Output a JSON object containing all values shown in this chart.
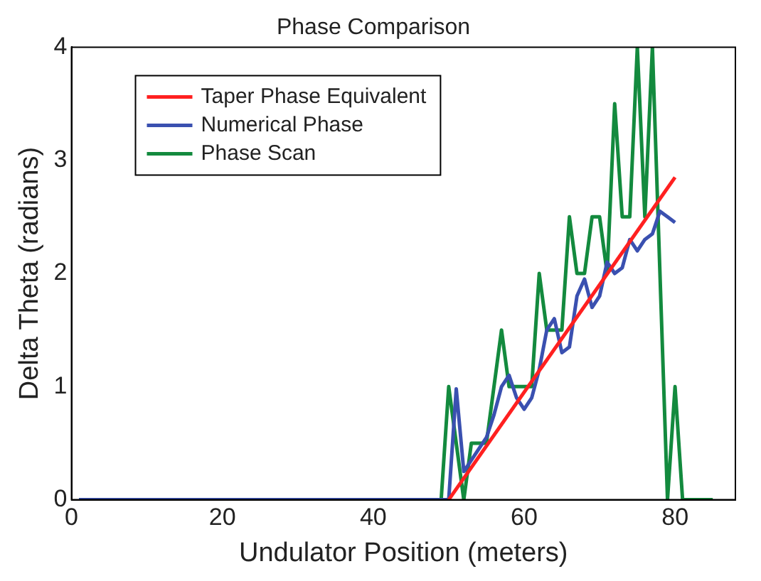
{
  "chart_data": {
    "type": "line",
    "title": "Phase Comparison",
    "xlabel": "Undulator Position (meters)",
    "ylabel": "Delta Theta (radians)",
    "xlim": [
      0,
      88
    ],
    "xticks": [
      0,
      20,
      40,
      60,
      80
    ],
    "ylim": [
      0,
      4
    ],
    "yticks": [
      0,
      1,
      2,
      3,
      4
    ],
    "grid": false,
    "legend": "top left",
    "marker": "none",
    "line_style": "solid",
    "series": [
      {
        "name": "Taper Phase Equivalent",
        "color": "#ff2020",
        "x": [
          50,
          80
        ],
        "values": [
          0,
          2.85
        ]
      },
      {
        "name": "Numerical Phase",
        "color": "#3a50b0",
        "x": [
          1,
          50,
          51,
          52,
          53,
          54,
          55,
          56,
          57,
          58,
          59,
          60,
          61,
          62,
          63,
          64,
          65,
          66,
          67,
          68,
          69,
          70,
          71,
          72,
          73,
          74,
          75,
          76,
          77,
          78,
          79,
          80
        ],
        "values": [
          0,
          0,
          0.98,
          0.25,
          0.35,
          0.45,
          0.55,
          0.75,
          1.0,
          1.1,
          0.9,
          0.8,
          0.9,
          1.15,
          1.5,
          1.6,
          1.3,
          1.35,
          1.8,
          1.95,
          1.7,
          1.8,
          2.1,
          2.0,
          2.05,
          2.3,
          2.2,
          2.3,
          2.35,
          2.55,
          2.5,
          2.45
        ]
      },
      {
        "name": "Phase Scan",
        "color": "#138a3e",
        "x": [
          1,
          49,
          50,
          52,
          53,
          55,
          57,
          58,
          61,
          62,
          63,
          65,
          66,
          67,
          68,
          69,
          70,
          71,
          72,
          73,
          74,
          75,
          76,
          77,
          79,
          80,
          81,
          85
        ],
        "values": [
          0,
          0,
          1,
          0,
          0.5,
          0.5,
          1.5,
          1,
          1,
          2,
          1.5,
          1.5,
          2.5,
          2,
          2,
          2.5,
          2.5,
          2,
          3.5,
          2.5,
          2.5,
          4,
          2.5,
          4,
          0,
          1,
          0,
          0
        ]
      }
    ]
  }
}
